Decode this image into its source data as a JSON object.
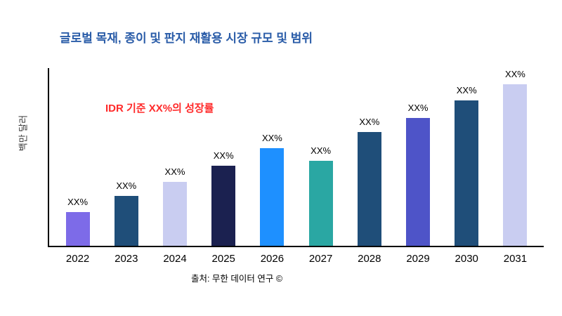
{
  "title": "글로벌 목재, 종이 및 판지 재활용 시장 규모 및 범위",
  "annotation": "IDR 기준 XX%의 성장률",
  "ylabel": "백만 달러",
  "source": "출처: 무한 데이터 연구 ©",
  "colors": {
    "title_blue": "#2A5CA8",
    "annotation_red": "#FF2A2A",
    "axis_black": "#000000"
  },
  "chart_data": {
    "type": "bar",
    "title": "글로벌 목재, 종이 및 판지 재활용 시장 규모 및 범위",
    "xlabel": "",
    "ylabel": "백만 달러",
    "categories": [
      "2022",
      "2023",
      "2024",
      "2025",
      "2026",
      "2027",
      "2028",
      "2029",
      "2030",
      "2031"
    ],
    "values": [
      19,
      28,
      36,
      45,
      55,
      48,
      64,
      72,
      82,
      91
    ],
    "bar_labels": [
      "XX%",
      "XX%",
      "XX%",
      "XX%",
      "XX%",
      "XX%",
      "XX%",
      "XX%",
      "XX%",
      "XX%"
    ],
    "bar_colors": [
      "#7D6BE8",
      "#1F4E79",
      "#C9CDF1",
      "#1B2150",
      "#1E90FF",
      "#2AA7A3",
      "#1F4E79",
      "#4E54C8",
      "#1F4E79",
      "#C9CDF1"
    ],
    "ylim": [
      0,
      100
    ],
    "grid": false,
    "legend": false,
    "annotation": "IDR 기준 XX%의 성장률",
    "source": "출처: 무한 데이터 연구 ©"
  }
}
